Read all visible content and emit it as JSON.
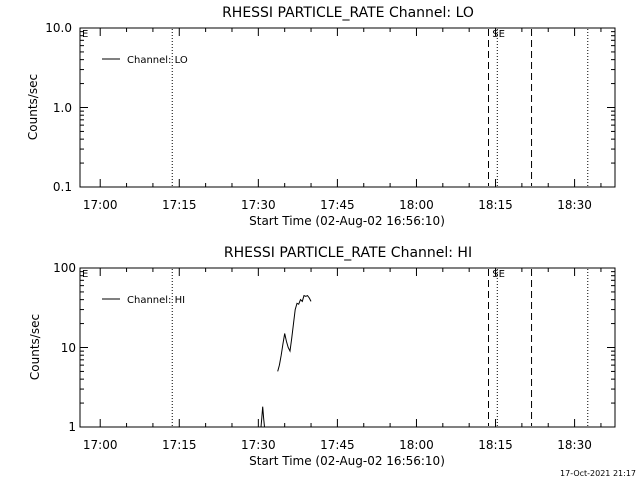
{
  "footer_stamp": "17-Oct-2021 21:17",
  "chart_data": [
    {
      "type": "line",
      "title": "RHESSI PARTICLE_RATE Channel: LO",
      "xlabel": "Start Time (02-Aug-02 16:56:10)",
      "ylabel": "Counts/sec",
      "yscale": "log",
      "xlim": [
        "16:56:10",
        "18:37:40"
      ],
      "ylim": [
        0.1,
        10.0
      ],
      "x_ticks": [
        "17:00",
        "17:15",
        "17:30",
        "17:45",
        "18:00",
        "18:15",
        "18:30"
      ],
      "y_ticks": [
        {
          "value": 0.1,
          "label": "0.1"
        },
        {
          "value": 1.0,
          "label": "1.0"
        },
        {
          "value": 10.0,
          "label": "10.0"
        }
      ],
      "series": [
        {
          "name": "Channel: LO",
          "x": [],
          "y": []
        }
      ],
      "legend_position": "top-left",
      "vertical_markers": [
        {
          "time": "17:13:40",
          "style": "dotted",
          "label": ""
        },
        {
          "time": "18:13:40",
          "style": "dashed",
          "label": ""
        },
        {
          "time": "18:15:20",
          "style": "dotted",
          "label": "SE"
        },
        {
          "time": "18:21:50",
          "style": "dashed",
          "label": ""
        },
        {
          "time": "18:32:30",
          "style": "dotted",
          "label": ""
        }
      ],
      "edge_markers": [
        "E"
      ]
    },
    {
      "type": "line",
      "title": "RHESSI PARTICLE_RATE Channel: HI",
      "xlabel": "Start Time (02-Aug-02 16:56:10)",
      "ylabel": "Counts/sec",
      "yscale": "log",
      "xlim": [
        "16:56:10",
        "18:37:40"
      ],
      "ylim": [
        1,
        100
      ],
      "x_ticks": [
        "17:00",
        "17:15",
        "17:30",
        "17:45",
        "18:00",
        "18:15",
        "18:30"
      ],
      "y_ticks": [
        {
          "value": 1,
          "label": "1"
        },
        {
          "value": 10,
          "label": "10"
        },
        {
          "value": 100,
          "label": "100"
        }
      ],
      "series": [
        {
          "name": "Channel: HI",
          "segments": [
            {
              "x": [
                "17:30:30",
                "17:30:40",
                "17:30:50",
                "17:31:00",
                "17:31:10"
              ],
              "y": [
                1.0,
                1.3,
                1.8,
                1.3,
                1.0
              ]
            },
            {
              "x": [
                "17:33:40",
                "17:34:00",
                "17:34:20",
                "17:34:40",
                "17:35:00",
                "17:35:20",
                "17:35:40",
                "17:36:00",
                "17:36:20",
                "17:36:40",
                "17:37:00",
                "17:37:20",
                "17:37:40",
                "17:38:00",
                "17:38:20",
                "17:38:40",
                "17:39:00",
                "17:39:20",
                "17:39:40",
                "17:40:00"
              ],
              "y": [
                5.0,
                6.0,
                8.0,
                11.0,
                15.0,
                12.0,
                10.0,
                9.0,
                13.0,
                20.0,
                30.0,
                36.0,
                35.0,
                40.0,
                38.0,
                45.0,
                44.0,
                45.0,
                42.0,
                38.0
              ]
            }
          ]
        }
      ],
      "legend_position": "top-left",
      "vertical_markers": [
        {
          "time": "17:13:40",
          "style": "dotted",
          "label": ""
        },
        {
          "time": "18:13:40",
          "style": "dashed",
          "label": ""
        },
        {
          "time": "18:15:20",
          "style": "dotted",
          "label": "SE"
        },
        {
          "time": "18:21:50",
          "style": "dashed",
          "label": ""
        },
        {
          "time": "18:32:30",
          "style": "dotted",
          "label": ""
        }
      ],
      "edge_markers": [
        "E"
      ]
    }
  ]
}
